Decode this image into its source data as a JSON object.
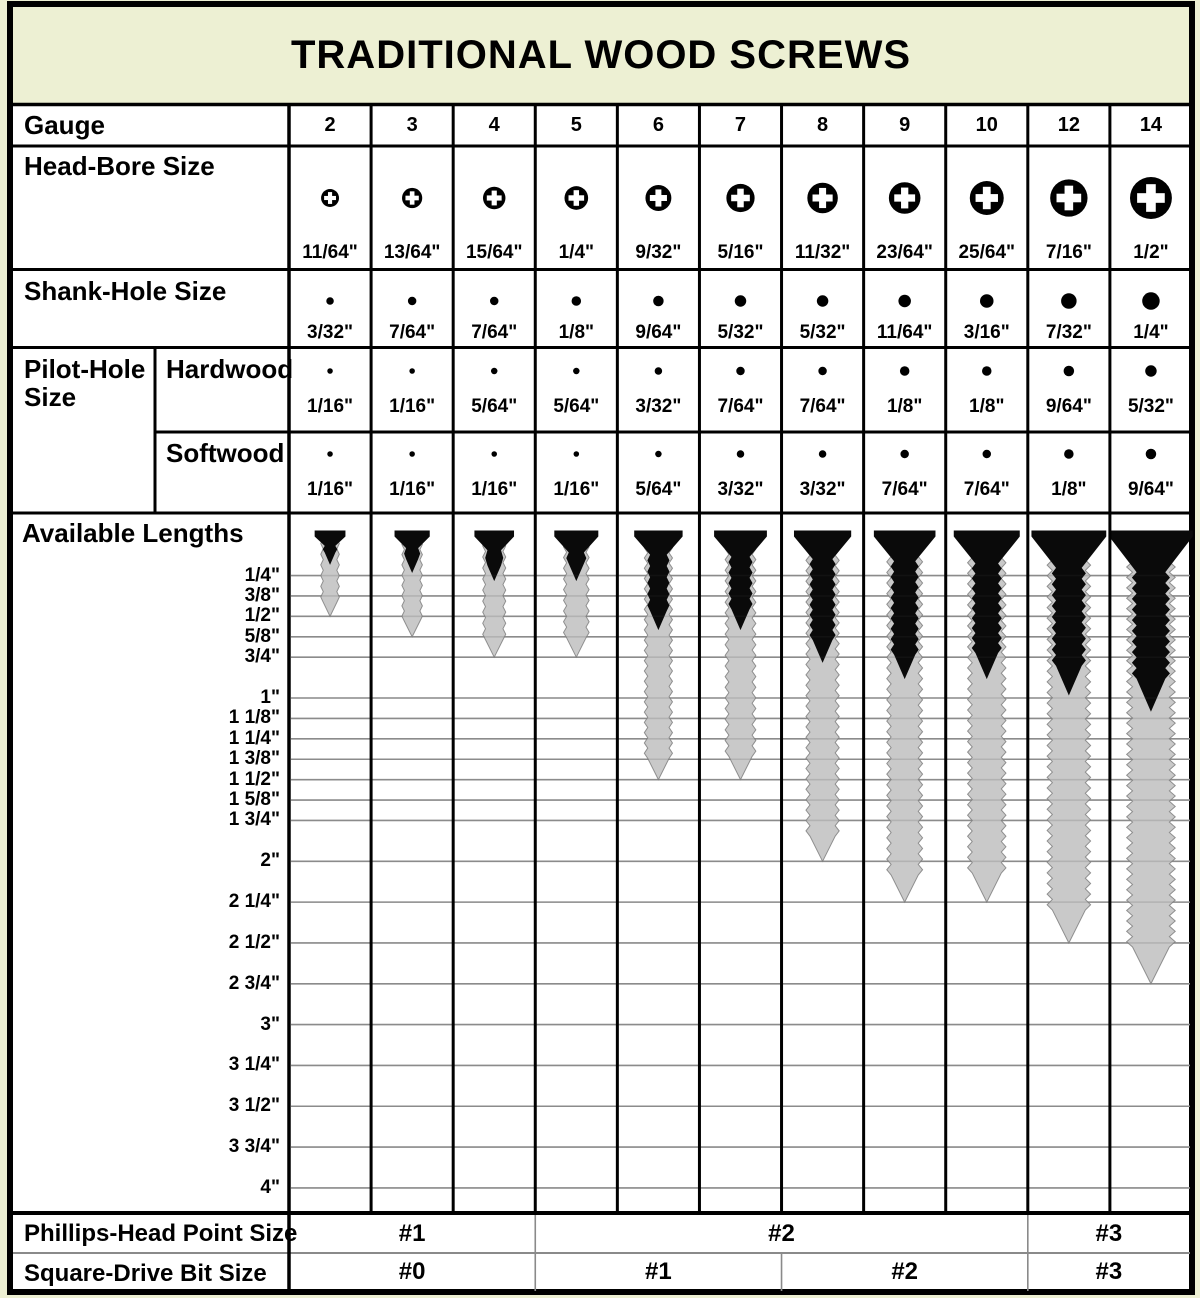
{
  "title": "TRADITIONAL WOOD SCREWS",
  "colors": {
    "banner_bg": "#edf0d3",
    "table_bg": "#ffffff",
    "ink": "#000000",
    "screw_black": "#0a0a0a",
    "screw_thread_gray": "#c9c9c9",
    "screw_thread_edge": "#8f8f8f",
    "grid_line": "#9a9a9a"
  },
  "gauge_row": {
    "label": "Gauge",
    "gauges": [
      2,
      3,
      4,
      5,
      6,
      7,
      8,
      9,
      10,
      12,
      14
    ]
  },
  "head_bore_row": {
    "label": "Head-Bore Size",
    "sizes": [
      {
        "label": "11/64\"",
        "inches": 0.172
      },
      {
        "label": "13/64\"",
        "inches": 0.203
      },
      {
        "label": "15/64\"",
        "inches": 0.234
      },
      {
        "label": "1/4\"",
        "inches": 0.25
      },
      {
        "label": "9/32\"",
        "inches": 0.281
      },
      {
        "label": "5/16\"",
        "inches": 0.313
      },
      {
        "label": "11/32\"",
        "inches": 0.344
      },
      {
        "label": "23/64\"",
        "inches": 0.359
      },
      {
        "label": "25/64\"",
        "inches": 0.391
      },
      {
        "label": "7/16\"",
        "inches": 0.438
      },
      {
        "label": "1/2\"",
        "inches": 0.5
      }
    ]
  },
  "shank_hole_row": {
    "label": "Shank-Hole Size",
    "sizes": [
      {
        "label": "3/32\"",
        "inches": 0.094
      },
      {
        "label": "7/64\"",
        "inches": 0.109
      },
      {
        "label": "7/64\"",
        "inches": 0.109
      },
      {
        "label": "1/8\"",
        "inches": 0.125
      },
      {
        "label": "9/64\"",
        "inches": 0.141
      },
      {
        "label": "5/32\"",
        "inches": 0.156
      },
      {
        "label": "5/32\"",
        "inches": 0.156
      },
      {
        "label": "11/64\"",
        "inches": 0.172
      },
      {
        "label": "3/16\"",
        "inches": 0.188
      },
      {
        "label": "7/32\"",
        "inches": 0.219
      },
      {
        "label": "1/4\"",
        "inches": 0.25
      }
    ]
  },
  "pilot_hole_row": {
    "label": "Pilot-Hole Size",
    "hardwood": {
      "label": "Hardwood",
      "sizes": [
        {
          "label": "1/16\"",
          "inches": 0.063
        },
        {
          "label": "1/16\"",
          "inches": 0.063
        },
        {
          "label": "5/64\"",
          "inches": 0.078
        },
        {
          "label": "5/64\"",
          "inches": 0.078
        },
        {
          "label": "3/32\"",
          "inches": 0.094
        },
        {
          "label": "7/64\"",
          "inches": 0.109
        },
        {
          "label": "7/64\"",
          "inches": 0.109
        },
        {
          "label": "1/8\"",
          "inches": 0.125
        },
        {
          "label": "1/8\"",
          "inches": 0.125
        },
        {
          "label": "9/64\"",
          "inches": 0.141
        },
        {
          "label": "5/32\"",
          "inches": 0.156
        }
      ]
    },
    "softwood": {
      "label": "Softwood",
      "sizes": [
        {
          "label": "1/16\"",
          "inches": 0.063
        },
        {
          "label": "1/16\"",
          "inches": 0.063
        },
        {
          "label": "1/16\"",
          "inches": 0.063
        },
        {
          "label": "1/16\"",
          "inches": 0.063
        },
        {
          "label": "5/64\"",
          "inches": 0.078
        },
        {
          "label": "3/32\"",
          "inches": 0.094
        },
        {
          "label": "3/32\"",
          "inches": 0.094
        },
        {
          "label": "7/64\"",
          "inches": 0.109
        },
        {
          "label": "7/64\"",
          "inches": 0.109
        },
        {
          "label": "1/8\"",
          "inches": 0.125
        },
        {
          "label": "9/64\"",
          "inches": 0.141
        }
      ]
    }
  },
  "available_lengths_row": {
    "label": "Available Lengths",
    "lengths": [
      {
        "label": "1/4\"",
        "inches": 0.25
      },
      {
        "label": "3/8\"",
        "inches": 0.375
      },
      {
        "label": "1/2\"",
        "inches": 0.5
      },
      {
        "label": "5/8\"",
        "inches": 0.625
      },
      {
        "label": "3/4\"",
        "inches": 0.75
      },
      {
        "label": "1\"",
        "inches": 1
      },
      {
        "label": "1 1/8\"",
        "inches": 1.125
      },
      {
        "label": "1 1/4\"",
        "inches": 1.25
      },
      {
        "label": "1 3/8\"",
        "inches": 1.375
      },
      {
        "label": "1 1/2\"",
        "inches": 1.5
      },
      {
        "label": "1 5/8\"",
        "inches": 1.625
      },
      {
        "label": "1 3/4\"",
        "inches": 1.75
      },
      {
        "label": "2\"",
        "inches": 2
      },
      {
        "label": "2 1/4\"",
        "inches": 2.25
      },
      {
        "label": "2 1/2\"",
        "inches": 2.5
      },
      {
        "label": "2 3/4\"",
        "inches": 2.75
      },
      {
        "label": "3\"",
        "inches": 3
      },
      {
        "label": "3 1/4\"",
        "inches": 3.25
      },
      {
        "label": "3 1/2\"",
        "inches": 3.5
      },
      {
        "label": "3 3/4\"",
        "inches": 3.75
      },
      {
        "label": "4\"",
        "inches": 4
      }
    ],
    "max_length_inches_per_gauge": [
      0.5,
      0.625,
      0.75,
      0.75,
      1.5,
      1.5,
      2,
      2.25,
      2.25,
      2.5,
      2.75
    ]
  },
  "phillips_row": {
    "label": "Phillips-Head Point Size",
    "cells": [
      {
        "label": "#1",
        "span": 3
      },
      {
        "label": "#2",
        "span": 6
      },
      {
        "label": "#3",
        "span": 2
      }
    ]
  },
  "square_drive_row": {
    "label": "Square-Drive Bit Size",
    "cells": [
      {
        "label": "#0",
        "span": 3
      },
      {
        "label": "#1",
        "span": 3
      },
      {
        "label": "#2",
        "span": 3
      },
      {
        "label": "#3",
        "span": 2
      }
    ]
  }
}
